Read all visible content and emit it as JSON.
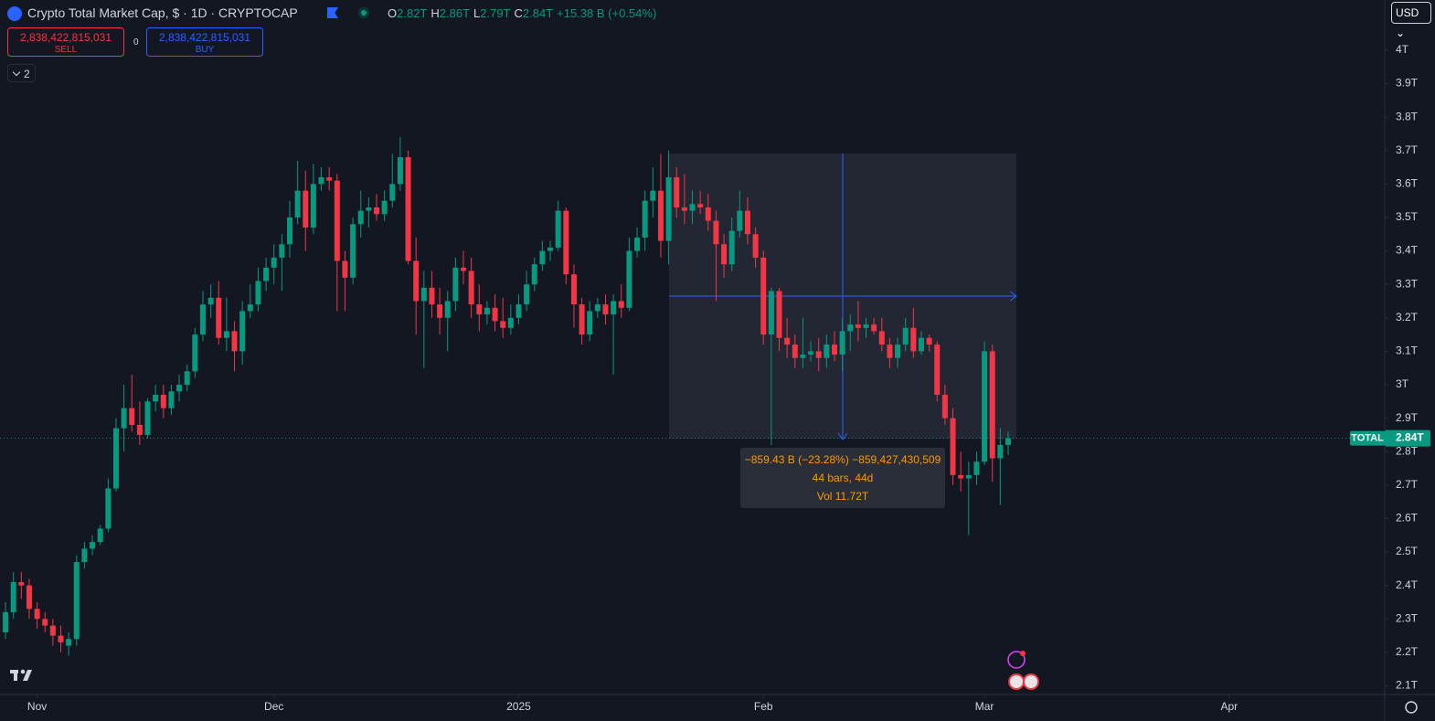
{
  "header": {
    "title": "Crypto Total Market Cap, $ · 1D · CRYPTOCAP",
    "ohlc": [
      {
        "label": "O",
        "value": "2.82T"
      },
      {
        "label": "H",
        "value": "2.86T"
      },
      {
        "label": "L",
        "value": "2.79T"
      },
      {
        "label": "C",
        "value": "2.84T"
      }
    ],
    "change": "+15.38 B (+0.54%)",
    "sell": {
      "price": "2,838,422,815,031",
      "label": "SELL"
    },
    "spread": "0",
    "buy": {
      "price": "2,838,422,815,031",
      "label": "BUY"
    },
    "indicators": "2",
    "currency": "USD"
  },
  "measure": {
    "line1": "−859.43 B (−23.28%) −859,427,430,509",
    "line2": "44 bars, 44d",
    "line3": "Vol 11.72T"
  },
  "chart_data": {
    "type": "candlestick",
    "up_color": "#089981",
    "down_color": "#f23645",
    "open": [
      2.26,
      2.32,
      2.41,
      2.4,
      2.33,
      2.3,
      2.28,
      2.25,
      2.22,
      2.24,
      2.47,
      2.51,
      2.53,
      2.57,
      2.69,
      2.87,
      2.93,
      2.88,
      2.85,
      2.95,
      2.97,
      2.93,
      2.98,
      3.0,
      3.04,
      3.15,
      3.24,
      3.26,
      3.14,
      3.16,
      3.1,
      3.22,
      3.24,
      3.31,
      3.35,
      3.38,
      3.42,
      3.5,
      3.58,
      3.47,
      3.6,
      3.62,
      3.61,
      3.37,
      3.32,
      3.48,
      3.52,
      3.53,
      3.51,
      3.55,
      3.6,
      3.68,
      3.37,
      3.25,
      3.29,
      3.24,
      3.2,
      3.25,
      3.35,
      3.34,
      3.24,
      3.21,
      3.23,
      3.19,
      3.17,
      3.2,
      3.24,
      3.3,
      3.36,
      3.4,
      3.41,
      3.52,
      3.33,
      3.24,
      3.15,
      3.22,
      3.24,
      3.21,
      3.25,
      3.23,
      3.4,
      3.44,
      3.55,
      3.58,
      3.43,
      3.62,
      3.53,
      3.52,
      3.54,
      3.53,
      3.49,
      3.42,
      3.36,
      3.46,
      3.52,
      3.45,
      3.38,
      3.15,
      3.28,
      3.14,
      3.12,
      3.08,
      3.09,
      3.1,
      3.08,
      3.12,
      3.09,
      3.16,
      3.18,
      3.17,
      3.18,
      3.16,
      3.12,
      3.08,
      3.12,
      3.17,
      3.1,
      3.14,
      3.12,
      2.97,
      2.9,
      2.73,
      2.72,
      2.73,
      2.77,
      3.1,
      2.78,
      2.82
    ],
    "high": [
      2.35,
      2.44,
      2.44,
      2.42,
      2.35,
      2.32,
      2.3,
      2.28,
      2.26,
      2.49,
      2.53,
      2.55,
      2.58,
      2.72,
      2.9,
      3.0,
      3.03,
      2.95,
      2.96,
      3.0,
      3.0,
      3.0,
      3.03,
      3.06,
      3.17,
      3.28,
      3.3,
      3.31,
      3.26,
      3.19,
      3.25,
      3.3,
      3.35,
      3.38,
      3.42,
      3.45,
      3.55,
      3.67,
      3.64,
      3.66,
      3.65,
      3.65,
      3.63,
      3.4,
      3.5,
      3.58,
      3.56,
      3.57,
      3.58,
      3.69,
      3.74,
      3.7,
      3.44,
      3.34,
      3.34,
      3.29,
      3.28,
      3.38,
      3.4,
      3.38,
      3.3,
      3.25,
      3.27,
      3.26,
      3.24,
      3.27,
      3.34,
      3.38,
      3.43,
      3.43,
      3.55,
      3.53,
      3.36,
      3.26,
      3.25,
      3.26,
      3.27,
      3.27,
      3.3,
      3.44,
      3.47,
      3.58,
      3.65,
      3.69,
      3.7,
      3.65,
      3.63,
      3.58,
      3.58,
      3.57,
      3.52,
      3.45,
      3.5,
      3.58,
      3.56,
      3.47,
      3.4,
      3.29,
      3.29,
      3.2,
      3.15,
      3.2,
      3.13,
      3.14,
      3.15,
      3.16,
      3.2,
      3.21,
      3.25,
      3.2,
      3.2,
      3.2,
      3.14,
      3.14,
      3.2,
      3.23,
      3.16,
      3.15,
      3.13,
      3.0,
      2.93,
      2.8,
      2.77,
      2.8,
      3.13,
      3.12,
      2.87,
      2.86
    ],
    "low": [
      2.24,
      2.3,
      2.36,
      2.3,
      2.27,
      2.26,
      2.22,
      2.2,
      2.19,
      2.22,
      2.45,
      2.49,
      2.52,
      2.56,
      2.68,
      2.8,
      2.86,
      2.82,
      2.84,
      2.92,
      2.9,
      2.91,
      2.95,
      2.98,
      3.02,
      3.13,
      3.2,
      3.12,
      3.1,
      3.04,
      3.06,
      3.2,
      3.22,
      3.28,
      3.3,
      3.28,
      3.38,
      3.48,
      3.4,
      3.45,
      3.58,
      3.58,
      3.22,
      3.22,
      3.3,
      3.44,
      3.47,
      3.49,
      3.49,
      3.53,
      3.58,
      3.36,
      3.15,
      3.05,
      3.2,
      3.15,
      3.1,
      3.22,
      3.3,
      3.2,
      3.16,
      3.18,
      3.16,
      3.14,
      3.15,
      3.18,
      3.22,
      3.28,
      3.34,
      3.37,
      3.4,
      3.3,
      3.17,
      3.12,
      3.13,
      3.2,
      3.18,
      3.03,
      3.2,
      3.22,
      3.38,
      3.4,
      3.5,
      3.38,
      3.36,
      3.5,
      3.48,
      3.48,
      3.51,
      3.46,
      3.25,
      3.32,
      3.34,
      3.44,
      3.42,
      3.35,
      3.12,
      2.82,
      3.1,
      3.08,
      3.05,
      3.05,
      3.07,
      3.04,
      3.05,
      3.07,
      3.04,
      3.1,
      3.13,
      3.14,
      3.15,
      3.1,
      3.05,
      3.05,
      3.1,
      3.08,
      3.09,
      3.1,
      2.95,
      2.88,
      2.7,
      2.68,
      2.55,
      2.7,
      2.76,
      2.71,
      2.64,
      2.79
    ],
    "close": [
      2.32,
      2.41,
      2.4,
      2.33,
      2.3,
      2.28,
      2.25,
      2.23,
      2.24,
      2.47,
      2.51,
      2.53,
      2.57,
      2.69,
      2.87,
      2.93,
      2.88,
      2.85,
      2.95,
      2.97,
      2.93,
      2.98,
      3.0,
      3.04,
      3.15,
      3.24,
      3.26,
      3.14,
      3.16,
      3.1,
      3.22,
      3.24,
      3.31,
      3.35,
      3.38,
      3.42,
      3.5,
      3.58,
      3.47,
      3.6,
      3.62,
      3.61,
      3.37,
      3.32,
      3.48,
      3.52,
      3.53,
      3.51,
      3.55,
      3.6,
      3.68,
      3.37,
      3.25,
      3.29,
      3.24,
      3.2,
      3.25,
      3.35,
      3.34,
      3.24,
      3.21,
      3.23,
      3.19,
      3.17,
      3.2,
      3.24,
      3.3,
      3.36,
      3.4,
      3.41,
      3.52,
      3.33,
      3.24,
      3.15,
      3.22,
      3.24,
      3.21,
      3.25,
      3.23,
      3.4,
      3.44,
      3.55,
      3.58,
      3.43,
      3.62,
      3.53,
      3.52,
      3.54,
      3.53,
      3.49,
      3.42,
      3.36,
      3.46,
      3.52,
      3.45,
      3.38,
      3.15,
      3.28,
      3.14,
      3.12,
      3.08,
      3.09,
      3.1,
      3.08,
      3.12,
      3.09,
      3.16,
      3.18,
      3.17,
      3.18,
      3.16,
      3.12,
      3.08,
      3.12,
      3.17,
      3.1,
      3.14,
      3.12,
      2.97,
      2.9,
      2.73,
      2.72,
      2.73,
      2.77,
      3.1,
      2.78,
      2.82,
      2.84
    ],
    "xlim": [
      -0.7,
      174.7
    ],
    "xticks": [
      {
        "value": 4,
        "label": "Nov"
      },
      {
        "value": 34,
        "label": "Dec"
      },
      {
        "value": 65,
        "label": "2025"
      },
      {
        "value": 96,
        "label": "Feb"
      },
      {
        "value": 124,
        "label": "Mar"
      },
      {
        "value": 155,
        "label": "Apr"
      }
    ],
    "ylim": [
      2.074,
      4.15
    ],
    "yticks": [
      {
        "value": 2.1,
        "label": "2.1T"
      },
      {
        "value": 2.2,
        "label": "2.2T"
      },
      {
        "value": 2.3,
        "label": "2.3T"
      },
      {
        "value": 2.4,
        "label": "2.4T"
      },
      {
        "value": 2.5,
        "label": "2.5T"
      },
      {
        "value": 2.6,
        "label": "2.6T"
      },
      {
        "value": 2.7,
        "label": "2.7T"
      },
      {
        "value": 2.8,
        "label": "2.8T"
      },
      {
        "value": 2.9,
        "label": "2.9T"
      },
      {
        "value": 3,
        "label": "3T"
      },
      {
        "value": 3.1,
        "label": "3.1T"
      },
      {
        "value": 3.2,
        "label": "3.2T"
      },
      {
        "value": 3.3,
        "label": "3.3T"
      },
      {
        "value": 3.4,
        "label": "3.4T"
      },
      {
        "value": 3.5,
        "label": "3.5T"
      },
      {
        "value": 3.6,
        "label": "3.6T"
      },
      {
        "value": 3.7,
        "label": "3.7T"
      },
      {
        "value": 3.8,
        "label": "3.8T"
      },
      {
        "value": 3.9,
        "label": "3.9T"
      },
      {
        "value": 4,
        "label": "4T"
      }
    ],
    "last_price": {
      "name": "TOTAL",
      "value": 2.84,
      "label": "2.84T"
    }
  }
}
